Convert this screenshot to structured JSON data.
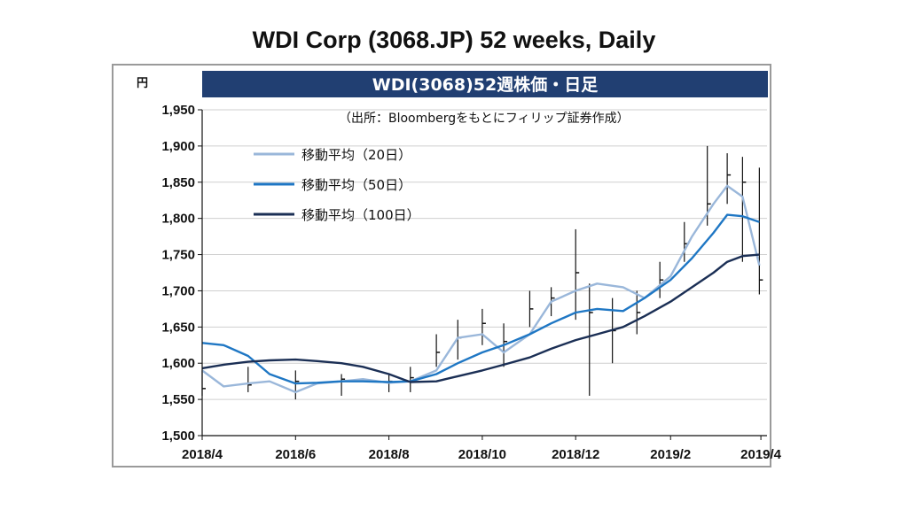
{
  "title": "WDI Corp (3068.JP) 52 weeks, Daily",
  "chart_data": {
    "type": "line",
    "header": "WDI(3068)52週株価・日足",
    "source_note": "（出所：Bloombergをもとにフィリップ証券作成）",
    "y_unit": "円",
    "ylim": [
      1500,
      1950
    ],
    "yticks": [
      "1,500",
      "1,550",
      "1,600",
      "1,650",
      "1,700",
      "1,750",
      "1,800",
      "1,850",
      "1,900",
      "1,950"
    ],
    "x_ticks": [
      "2018/4",
      "2018/6",
      "2018/8",
      "2018/10",
      "2018/12",
      "2019/2",
      "2019/4"
    ],
    "x_range": [
      "2018-04-01",
      "2019-04-05"
    ],
    "grid": true,
    "legend_position": "top-left",
    "price_bars": {
      "dates": [
        "2018-04-01",
        "2018-05-01",
        "2018-06-01",
        "2018-07-01",
        "2018-08-01",
        "2018-08-15",
        "2018-09-01",
        "2018-09-15",
        "2018-10-01",
        "2018-10-15",
        "2018-11-01",
        "2018-11-15",
        "2018-12-01",
        "2018-12-10",
        "2018-12-25",
        "2019-01-10",
        "2019-01-25",
        "2019-02-10",
        "2019-02-25",
        "2019-03-10",
        "2019-03-20",
        "2019-03-31"
      ],
      "close": [
        1565,
        1570,
        1575,
        1578,
        1575,
        1580,
        1615,
        1635,
        1655,
        1630,
        1675,
        1690,
        1725,
        1670,
        1645,
        1670,
        1715,
        1765,
        1820,
        1860,
        1850,
        1715
      ],
      "high": [
        1590,
        1595,
        1590,
        1585,
        1585,
        1595,
        1640,
        1660,
        1675,
        1655,
        1700,
        1705,
        1785,
        1710,
        1690,
        1700,
        1740,
        1795,
        1900,
        1890,
        1885,
        1870
      ],
      "low": [
        1555,
        1560,
        1550,
        1555,
        1560,
        1560,
        1595,
        1605,
        1625,
        1595,
        1650,
        1665,
        1660,
        1555,
        1600,
        1640,
        1690,
        1740,
        1790,
        1820,
        1740,
        1695
      ]
    },
    "series": [
      {
        "name": "移動平均（20日）",
        "color": "#9ab7da",
        "dates": [
          "2018-04-01",
          "2018-04-15",
          "2018-05-01",
          "2018-05-15",
          "2018-06-01",
          "2018-06-15",
          "2018-07-01",
          "2018-07-15",
          "2018-08-01",
          "2018-08-15",
          "2018-09-01",
          "2018-09-15",
          "2018-10-01",
          "2018-10-15",
          "2018-11-01",
          "2018-11-15",
          "2018-12-01",
          "2018-12-15",
          "2019-01-01",
          "2019-01-15",
          "2019-02-01",
          "2019-02-15",
          "2019-03-01",
          "2019-03-10",
          "2019-03-20",
          "2019-03-31"
        ],
        "values": [
          1590,
          1568,
          1572,
          1575,
          1560,
          1572,
          1575,
          1578,
          1573,
          1575,
          1590,
          1635,
          1640,
          1615,
          1640,
          1685,
          1700,
          1710,
          1705,
          1690,
          1720,
          1775,
          1820,
          1845,
          1830,
          1735
        ]
      },
      {
        "name": "移動平均（50日）",
        "color": "#1f77c4",
        "dates": [
          "2018-04-01",
          "2018-04-15",
          "2018-05-01",
          "2018-05-15",
          "2018-06-01",
          "2018-06-15",
          "2018-07-01",
          "2018-07-15",
          "2018-08-01",
          "2018-08-15",
          "2018-09-01",
          "2018-09-15",
          "2018-10-01",
          "2018-10-15",
          "2018-11-01",
          "2018-11-15",
          "2018-12-01",
          "2018-12-15",
          "2019-01-01",
          "2019-01-15",
          "2019-02-01",
          "2019-02-15",
          "2019-03-01",
          "2019-03-10",
          "2019-03-20",
          "2019-03-31"
        ],
        "values": [
          1628,
          1625,
          1610,
          1585,
          1572,
          1573,
          1575,
          1575,
          1574,
          1575,
          1585,
          1600,
          1615,
          1625,
          1640,
          1655,
          1670,
          1675,
          1672,
          1690,
          1715,
          1745,
          1780,
          1805,
          1803,
          1795
        ]
      },
      {
        "name": "移動平均（100日）",
        "color": "#1b2f55",
        "dates": [
          "2018-04-01",
          "2018-04-15",
          "2018-05-01",
          "2018-05-15",
          "2018-06-01",
          "2018-06-15",
          "2018-07-01",
          "2018-07-15",
          "2018-08-01",
          "2018-08-15",
          "2018-09-01",
          "2018-09-15",
          "2018-10-01",
          "2018-10-15",
          "2018-11-01",
          "2018-11-15",
          "2018-12-01",
          "2018-12-15",
          "2019-01-01",
          "2019-01-15",
          "2019-02-01",
          "2019-02-15",
          "2019-03-01",
          "2019-03-10",
          "2019-03-20",
          "2019-03-31"
        ],
        "values": [
          1593,
          1598,
          1602,
          1604,
          1605,
          1603,
          1600,
          1595,
          1585,
          1574,
          1575,
          1582,
          1590,
          1598,
          1608,
          1620,
          1632,
          1640,
          1650,
          1665,
          1685,
          1705,
          1725,
          1740,
          1748,
          1750
        ]
      }
    ]
  }
}
